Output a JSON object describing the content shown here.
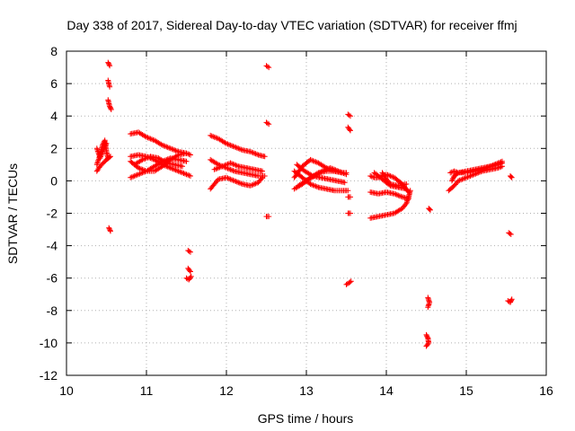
{
  "chart_data": {
    "type": "scatter",
    "title": "Day 338 of 2017, Sidereal Day-to-day VTEC variation (SDTVAR) for receiver ffmj",
    "xlabel": "GPS time / hours",
    "ylabel": "SDTVAR / TECUs",
    "xlim": [
      10,
      16
    ],
    "ylim": [
      -12,
      8
    ],
    "xticks": [
      "10",
      "11",
      "12",
      "13",
      "14",
      "15",
      "16"
    ],
    "yticks": [
      "8",
      "6",
      "4",
      "2",
      "0",
      "-2",
      "-4",
      "-6",
      "-8",
      "-10",
      "-12"
    ],
    "grid": true,
    "legend": "none",
    "marker": "+",
    "series_color": "#ff0000",
    "series": [
      {
        "name": "ffmj",
        "segments": [
          [
            [
              10.38,
              1.0
            ],
            [
              10.42,
              1.6
            ],
            [
              10.45,
              2.2
            ],
            [
              10.48,
              2.5
            ],
            [
              10.5,
              1.8
            ],
            [
              10.52,
              1.4
            ]
          ],
          [
            [
              10.38,
              0.6
            ],
            [
              10.42,
              0.9
            ],
            [
              10.46,
              1.1
            ],
            [
              10.5,
              1.3
            ],
            [
              10.55,
              1.5
            ]
          ],
          [
            [
              10.38,
              2.0
            ],
            [
              10.42,
              1.4
            ],
            [
              10.46,
              1.9
            ],
            [
              10.5,
              2.3
            ]
          ],
          [
            [
              10.52,
              7.3
            ],
            [
              10.54,
              7.1
            ]
          ],
          [
            [
              10.52,
              6.2
            ],
            [
              10.54,
              5.8
            ]
          ],
          [
            [
              10.52,
              5.0
            ],
            [
              10.54,
              4.6
            ],
            [
              10.56,
              4.4
            ]
          ],
          [
            [
              10.53,
              -2.9
            ],
            [
              10.55,
              -3.1
            ]
          ],
          [
            [
              10.8,
              2.9
            ],
            [
              10.9,
              3.0
            ],
            [
              11.0,
              2.7
            ],
            [
              11.1,
              2.5
            ],
            [
              11.2,
              2.2
            ],
            [
              11.3,
              2.0
            ],
            [
              11.4,
              1.8
            ],
            [
              11.5,
              1.7
            ],
            [
              11.55,
              1.6
            ]
          ],
          [
            [
              10.8,
              1.5
            ],
            [
              10.9,
              1.6
            ],
            [
              11.0,
              1.5
            ],
            [
              11.1,
              1.3
            ],
            [
              11.2,
              1.0
            ],
            [
              11.3,
              0.8
            ],
            [
              11.4,
              0.6
            ],
            [
              11.5,
              0.4
            ],
            [
              11.55,
              0.3
            ]
          ],
          [
            [
              10.8,
              1.2
            ],
            [
              10.9,
              0.8
            ],
            [
              11.0,
              0.6
            ],
            [
              11.1,
              0.6
            ],
            [
              11.2,
              0.9
            ],
            [
              11.3,
              1.3
            ],
            [
              11.4,
              1.6
            ],
            [
              11.5,
              1.7
            ]
          ],
          [
            [
              10.8,
              0.2
            ],
            [
              10.9,
              0.4
            ],
            [
              11.0,
              0.6
            ],
            [
              11.1,
              0.9
            ],
            [
              11.2,
              1.2
            ],
            [
              11.3,
              1.4
            ],
            [
              11.4,
              1.3
            ],
            [
              11.5,
              1.2
            ]
          ],
          [
            [
              10.85,
              1.0
            ],
            [
              10.95,
              1.3
            ],
            [
              11.05,
              1.5
            ],
            [
              11.15,
              1.4
            ],
            [
              11.25,
              1.1
            ],
            [
              11.35,
              1.0
            ],
            [
              11.45,
              0.9
            ]
          ],
          [
            [
              11.52,
              -4.3
            ],
            [
              11.55,
              -4.4
            ]
          ],
          [
            [
              11.52,
              -5.4
            ],
            [
              11.55,
              -5.6
            ]
          ],
          [
            [
              11.5,
              -6.0
            ],
            [
              11.53,
              -6.1
            ],
            [
              11.56,
              -5.9
            ]
          ],
          [
            [
              11.8,
              2.8
            ],
            [
              11.9,
              2.6
            ],
            [
              12.0,
              2.3
            ],
            [
              12.1,
              2.1
            ],
            [
              12.2,
              1.9
            ],
            [
              12.3,
              1.8
            ],
            [
              12.4,
              1.6
            ],
            [
              12.48,
              1.5
            ]
          ],
          [
            [
              11.8,
              1.3
            ],
            [
              11.9,
              1.0
            ],
            [
              12.0,
              0.8
            ],
            [
              12.1,
              0.6
            ],
            [
              12.2,
              0.5
            ],
            [
              12.3,
              0.4
            ],
            [
              12.4,
              0.3
            ],
            [
              12.48,
              0.3
            ]
          ],
          [
            [
              11.8,
              -0.5
            ],
            [
              11.85,
              -0.2
            ],
            [
              11.9,
              0.1
            ],
            [
              12.0,
              0.2
            ],
            [
              12.1,
              0.0
            ],
            [
              12.2,
              -0.2
            ],
            [
              12.3,
              -0.3
            ],
            [
              12.4,
              -0.1
            ],
            [
              12.45,
              0.2
            ]
          ],
          [
            [
              11.85,
              0.7
            ],
            [
              11.95,
              0.9
            ],
            [
              12.05,
              1.1
            ],
            [
              12.15,
              0.9
            ],
            [
              12.25,
              0.8
            ],
            [
              12.35,
              0.7
            ],
            [
              12.45,
              0.6
            ]
          ],
          [
            [
              12.5,
              7.1
            ],
            [
              12.53,
              7.0
            ]
          ],
          [
            [
              12.5,
              3.6
            ],
            [
              12.53,
              3.5
            ]
          ],
          [
            [
              12.5,
              -2.2
            ],
            [
              12.53,
              -2.2
            ]
          ],
          [
            [
              12.85,
              0.2
            ],
            [
              12.95,
              0.9
            ],
            [
              13.05,
              1.3
            ],
            [
              13.15,
              1.1
            ],
            [
              13.25,
              0.8
            ],
            [
              13.35,
              0.6
            ],
            [
              13.45,
              0.5
            ],
            [
              13.5,
              0.5
            ]
          ],
          [
            [
              12.85,
              -0.5
            ],
            [
              12.95,
              -0.2
            ],
            [
              13.05,
              0.2
            ],
            [
              13.15,
              0.5
            ],
            [
              13.25,
              0.6
            ],
            [
              13.35,
              0.6
            ],
            [
              13.45,
              0.5
            ]
          ],
          [
            [
              12.85,
              0.6
            ],
            [
              12.95,
              0.2
            ],
            [
              13.05,
              -0.2
            ],
            [
              13.15,
              -0.4
            ],
            [
              13.25,
              -0.5
            ],
            [
              13.35,
              -0.6
            ],
            [
              13.45,
              -0.6
            ],
            [
              13.52,
              -0.6
            ]
          ],
          [
            [
              12.9,
              -0.3
            ],
            [
              13.0,
              0.0
            ],
            [
              13.1,
              0.3
            ],
            [
              13.2,
              0.6
            ],
            [
              13.3,
              0.8
            ],
            [
              13.4,
              0.6
            ],
            [
              13.5,
              0.4
            ]
          ],
          [
            [
              12.88,
              1.0
            ],
            [
              12.98,
              0.6
            ],
            [
              13.08,
              0.3
            ],
            [
              13.18,
              0.2
            ],
            [
              13.28,
              0.1
            ],
            [
              13.38,
              0.0
            ],
            [
              13.48,
              -0.1
            ]
          ],
          [
            [
              13.52,
              4.1
            ],
            [
              13.55,
              4.0
            ]
          ],
          [
            [
              13.52,
              3.3
            ],
            [
              13.55,
              3.1
            ]
          ],
          [
            [
              13.52,
              -2.0
            ],
            [
              13.55,
              -2.0
            ]
          ],
          [
            [
              13.52,
              -1.0
            ],
            [
              13.55,
              -1.0
            ]
          ],
          [
            [
              13.5,
              -6.4
            ],
            [
              13.53,
              -6.3
            ],
            [
              13.56,
              -6.2
            ]
          ],
          [
            [
              13.8,
              -2.3
            ],
            [
              13.9,
              -2.2
            ],
            [
              14.0,
              -2.1
            ],
            [
              14.1,
              -2.0
            ],
            [
              14.2,
              -1.7
            ],
            [
              14.25,
              -1.4
            ],
            [
              14.28,
              -1.0
            ],
            [
              14.3,
              -0.6
            ]
          ],
          [
            [
              13.8,
              0.3
            ],
            [
              13.85,
              0.2
            ],
            [
              13.9,
              0.2
            ],
            [
              14.0,
              0.4
            ],
            [
              14.1,
              0.2
            ],
            [
              14.2,
              -0.2
            ],
            [
              14.28,
              -0.7
            ]
          ],
          [
            [
              13.8,
              -0.7
            ],
            [
              13.9,
              -0.8
            ],
            [
              14.0,
              -0.7
            ],
            [
              14.1,
              -0.8
            ],
            [
              14.2,
              -1.0
            ],
            [
              14.28,
              -1.1
            ]
          ],
          [
            [
              13.85,
              0.5
            ],
            [
              13.95,
              0.1
            ],
            [
              14.05,
              -0.3
            ],
            [
              14.15,
              -0.4
            ],
            [
              14.25,
              -0.5
            ]
          ],
          [
            [
              13.95,
              0.5
            ],
            [
              14.0,
              0.1
            ],
            [
              14.05,
              -0.2
            ],
            [
              14.15,
              -0.3
            ],
            [
              14.25,
              -0.2
            ]
          ],
          [
            [
              14.53,
              -1.7
            ],
            [
              14.55,
              -1.8
            ]
          ],
          [
            [
              14.52,
              -7.2
            ],
            [
              14.54,
              -7.5
            ],
            [
              14.52,
              -7.8
            ]
          ],
          [
            [
              14.5,
              -9.5
            ],
            [
              14.52,
              -9.7
            ],
            [
              14.53,
              -10.0
            ],
            [
              14.5,
              -10.2
            ]
          ],
          [
            [
              14.78,
              -0.6
            ],
            [
              14.85,
              -0.3
            ],
            [
              14.9,
              0.0
            ],
            [
              15.0,
              0.2
            ],
            [
              15.1,
              0.4
            ],
            [
              15.2,
              0.6
            ],
            [
              15.3,
              0.7
            ],
            [
              15.4,
              0.8
            ],
            [
              15.45,
              0.9
            ]
          ],
          [
            [
              14.82,
              0.0
            ],
            [
              14.85,
              0.3
            ],
            [
              14.9,
              0.5
            ],
            [
              15.0,
              0.6
            ],
            [
              15.1,
              0.7
            ],
            [
              15.2,
              0.8
            ],
            [
              15.3,
              0.9
            ],
            [
              15.4,
              1.0
            ],
            [
              15.45,
              1.1
            ]
          ],
          [
            [
              14.8,
              0.5
            ],
            [
              14.85,
              0.6
            ],
            [
              14.9,
              0.5
            ],
            [
              15.0,
              0.5
            ],
            [
              15.1,
              0.6
            ],
            [
              15.2,
              0.7
            ],
            [
              15.3,
              0.9
            ],
            [
              15.4,
              1.1
            ],
            [
              15.45,
              1.2
            ]
          ],
          [
            [
              15.55,
              0.3
            ],
            [
              15.57,
              0.2
            ]
          ],
          [
            [
              15.53,
              -3.2
            ],
            [
              15.56,
              -3.3
            ]
          ],
          [
            [
              15.52,
              -7.4
            ],
            [
              15.55,
              -7.5
            ],
            [
              15.57,
              -7.3
            ]
          ]
        ]
      }
    ]
  }
}
